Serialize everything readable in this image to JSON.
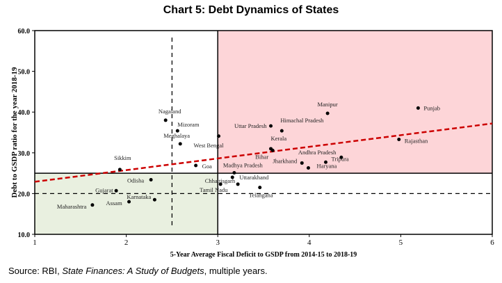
{
  "title": "Chart 5: Debt Dynamics of States",
  "source": {
    "prefix": "Source: RBI, ",
    "italic": "State Finances: A Study of Budgets",
    "suffix": ", multiple years."
  },
  "colors": {
    "high_quadrant": "#fdd5d8",
    "low_quadrant": "#e9f0e0",
    "trend": "#cc0000",
    "point": "#000000"
  },
  "chart_data": {
    "type": "scatter",
    "title": "Chart 5: Debt Dynamics of States",
    "xlabel": "5-Year Average Fiscal Deficit to GSDP from 2014-15 to 2018-19",
    "ylabel": "Debt to GSDP ratio for the year 2018-19",
    "xlim": [
      1,
      6
    ],
    "ylim": [
      10,
      60
    ],
    "xticks": [
      "1",
      "2",
      "3",
      "4",
      "5",
      "6"
    ],
    "yticks": [
      "10.0",
      "20.0",
      "30.0",
      "40.0",
      "50.0",
      "60.0"
    ],
    "grid": false,
    "quadrant_lines": {
      "x": 3,
      "y": 25
    },
    "dashed_reference_lines": {
      "x": 2.5,
      "y": 20
    },
    "shaded_regions": [
      {
        "name": "high",
        "x": [
          3,
          6
        ],
        "y": [
          25,
          60
        ]
      },
      {
        "name": "low",
        "x": [
          1,
          3
        ],
        "y": [
          10,
          25
        ]
      }
    ],
    "trendline": {
      "x": [
        1,
        6
      ],
      "y": [
        22.9,
        37.2
      ]
    },
    "points": [
      {
        "label": "Punjab",
        "x": 5.19,
        "y": 41.0
      },
      {
        "label": "Manipur",
        "x": 4.2,
        "y": 39.7
      },
      {
        "label": "Nagaland",
        "x": 2.43,
        "y": 38.0
      },
      {
        "label": "Uttar Pradesh",
        "x": 3.58,
        "y": 36.6
      },
      {
        "label": "Himachal Pradesh",
        "x": 3.7,
        "y": 35.4
      },
      {
        "label": "Mizoram",
        "x": 2.56,
        "y": 35.4
      },
      {
        "label": "West Bengal",
        "x": 3.01,
        "y": 34.1
      },
      {
        "label": "Rajasthan",
        "x": 4.98,
        "y": 33.3
      },
      {
        "label": "Meghalaya",
        "x": 2.59,
        "y": 32.2
      },
      {
        "label": "Kerala",
        "x": 3.58,
        "y": 31.0
      },
      {
        "label": "Bihar",
        "x": 3.6,
        "y": 30.6
      },
      {
        "label": "Andhra Pradesh",
        "x": 4.35,
        "y": 28.9
      },
      {
        "label": "Tripura",
        "x": 4.18,
        "y": 27.7
      },
      {
        "label": "Jharkhand",
        "x": 3.92,
        "y": 27.5
      },
      {
        "label": "Goa",
        "x": 2.76,
        "y": 26.9
      },
      {
        "label": "Haryana",
        "x": 3.99,
        "y": 26.3
      },
      {
        "label": "Sikkim",
        "x": 1.93,
        "y": 25.9
      },
      {
        "label": "Madhya Pradesh",
        "x": 3.18,
        "y": 25.1
      },
      {
        "label": "Uttarakhand",
        "x": 3.16,
        "y": 24.0
      },
      {
        "label": "Odisha",
        "x": 2.27,
        "y": 23.4
      },
      {
        "label": "Chhattisgarh",
        "x": 3.22,
        "y": 22.3
      },
      {
        "label": "Tamil Nadu",
        "x": 3.03,
        "y": 22.3
      },
      {
        "label": "Telangana",
        "x": 3.46,
        "y": 21.5
      },
      {
        "label": "Gujarat",
        "x": 1.89,
        "y": 20.7
      },
      {
        "label": "Karnataka",
        "x": 2.31,
        "y": 18.5
      },
      {
        "label": "Assam",
        "x": 2.03,
        "y": 18.0
      },
      {
        "label": "Maharashtra",
        "x": 1.63,
        "y": 17.2
      }
    ]
  }
}
